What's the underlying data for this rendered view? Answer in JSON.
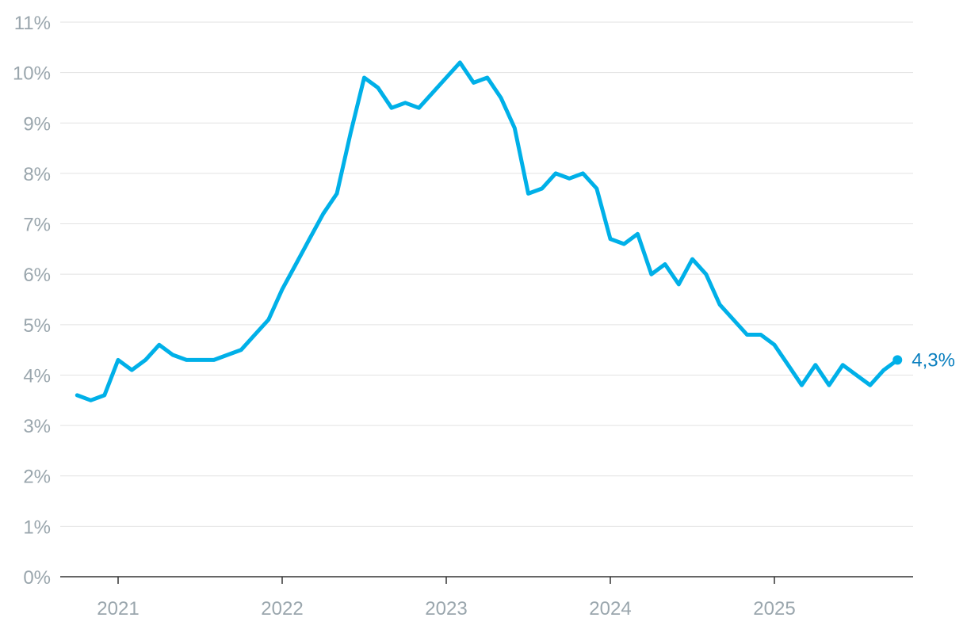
{
  "chart_data": {
    "type": "line",
    "title": "",
    "xlabel": "",
    "ylabel": "",
    "ylim": [
      0,
      11
    ],
    "y_ticks": [
      "0%",
      "1%",
      "2%",
      "3%",
      "4%",
      "5%",
      "6%",
      "7%",
      "8%",
      "9%",
      "10%",
      "11%"
    ],
    "x_ticks": [
      "2021",
      "2022",
      "2023",
      "2024",
      "2025"
    ],
    "grid": true,
    "legend": "none",
    "line_color": "#00b0e8",
    "end_label": "4,3%",
    "end_label_color": "#0a7fbf",
    "series": [
      {
        "x": [
          "2020-10",
          "2020-11",
          "2020-12",
          "2021-01",
          "2021-02",
          "2021-03",
          "2021-04",
          "2021-05",
          "2021-06",
          "2021-07",
          "2021-08",
          "2021-09",
          "2021-10",
          "2021-11",
          "2021-12",
          "2022-01",
          "2022-02",
          "2022-03",
          "2022-04",
          "2022-05",
          "2022-06",
          "2022-07",
          "2022-08",
          "2022-09",
          "2022-10",
          "2022-11",
          "2022-12",
          "2023-01",
          "2023-02",
          "2023-03",
          "2023-04",
          "2023-05",
          "2023-06",
          "2023-07",
          "2023-08",
          "2023-09",
          "2023-10",
          "2023-11",
          "2023-12",
          "2024-01",
          "2024-02",
          "2024-03",
          "2024-04",
          "2024-05",
          "2024-06",
          "2024-07",
          "2024-08",
          "2024-09",
          "2024-10",
          "2024-11",
          "2024-12",
          "2025-01",
          "2025-02",
          "2025-03",
          "2025-04",
          "2025-05",
          "2025-06",
          "2025-07",
          "2025-08",
          "2025-09",
          "2025-10"
        ],
        "values": [
          3.6,
          3.5,
          3.6,
          4.3,
          4.1,
          4.3,
          4.6,
          4.4,
          4.3,
          4.3,
          4.3,
          4.4,
          4.5,
          4.8,
          5.1,
          5.7,
          6.2,
          6.7,
          7.2,
          7.6,
          8.8,
          9.9,
          9.7,
          9.3,
          9.4,
          9.3,
          9.6,
          9.9,
          10.2,
          9.8,
          9.9,
          9.5,
          8.9,
          7.6,
          7.7,
          8.0,
          7.9,
          8.0,
          7.7,
          6.7,
          6.6,
          6.8,
          6.0,
          6.2,
          5.8,
          6.3,
          6.0,
          5.4,
          5.1,
          4.8,
          4.8,
          4.6,
          4.2,
          3.8,
          4.2,
          3.8,
          4.2,
          4.0,
          3.8,
          4.1,
          4.3
        ]
      }
    ]
  }
}
